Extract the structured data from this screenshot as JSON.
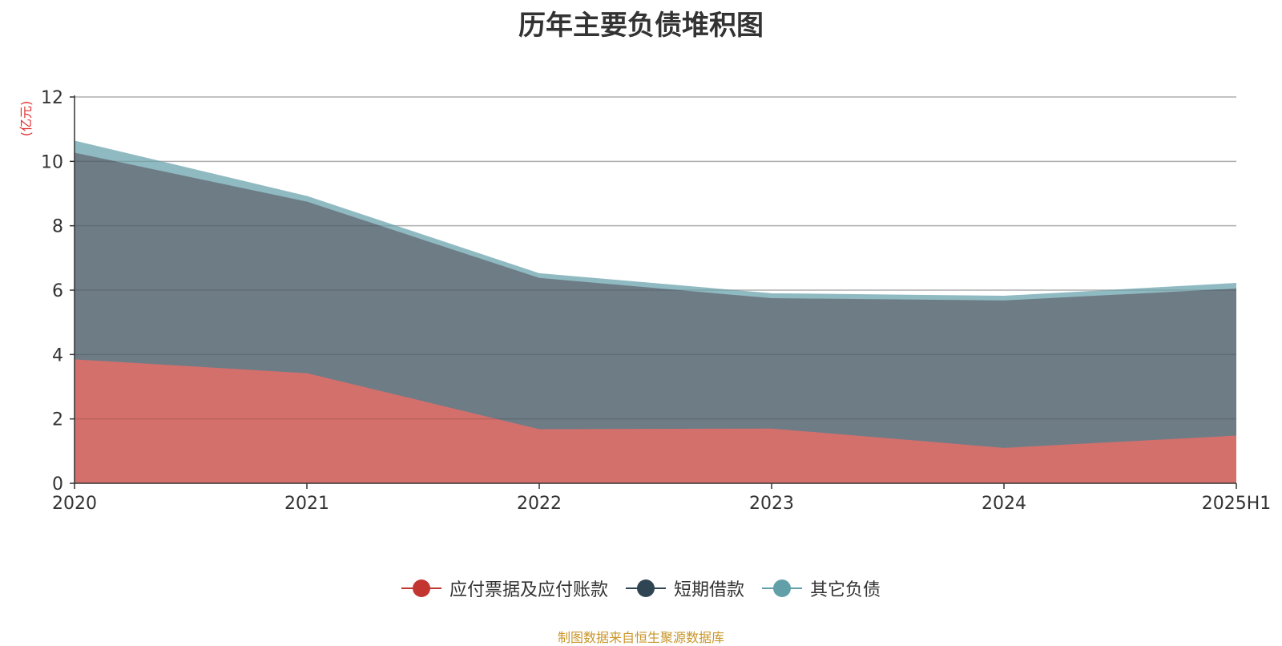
{
  "chart_data": {
    "type": "area",
    "title": "历年主要负债堆积图",
    "ylabel": "(亿元)",
    "xlabel": "",
    "categories": [
      "2020",
      "2021",
      "2022",
      "2023",
      "2024",
      "2025H1"
    ],
    "ylim": [
      0,
      12
    ],
    "yticks": [
      0,
      2,
      4,
      6,
      8,
      10,
      12
    ],
    "stacked": true,
    "grid": true,
    "legend_position": "bottom",
    "series": [
      {
        "name": "应付票据及应付账款",
        "values": [
          3.85,
          3.42,
          1.68,
          1.7,
          1.1,
          1.48
        ],
        "fill": "#d4706c",
        "color": "#c23531"
      },
      {
        "name": "短期借款",
        "values": [
          6.42,
          5.33,
          4.7,
          4.05,
          4.58,
          4.57
        ],
        "fill": "#6e7c86",
        "color": "#2f4554"
      },
      {
        "name": "其它负债",
        "values": [
          0.35,
          0.15,
          0.12,
          0.13,
          0.12,
          0.15
        ],
        "fill": "#8fbac1",
        "color": "#61a0a8"
      }
    ]
  },
  "source_text": "制图数据来自恒生聚源数据库"
}
